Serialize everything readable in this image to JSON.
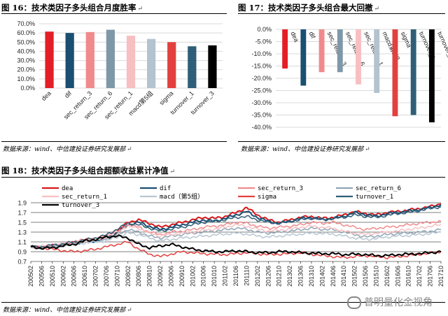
{
  "fig16": {
    "title": "图 16：技术类因子多头组合月度胜率",
    "mark": "↵",
    "source": "数据来源：wind、中信建投证券研究发展部",
    "source_mark": "↵",
    "chart_data": {
      "type": "bar",
      "categories": [
        "dea",
        "dif",
        "sec_return_3",
        "sec_return_6",
        "sec_return_1",
        "macd第5组",
        "sigma",
        "turnover_1",
        "turnover_3"
      ],
      "values": [
        61.5,
        60.0,
        61.0,
        63.5,
        57.0,
        53.5,
        50.0,
        45.5,
        46.5
      ],
      "colors": [
        "#E41E26",
        "#1B4F72",
        "#F08A8C",
        "#7E98A8",
        "#F7BFC1",
        "#B3C3CF",
        "#E2403F",
        "#2E5E78",
        "#000000"
      ],
      "ylim": [
        0,
        70
      ],
      "yticks": [
        "0.0%",
        "10.0%",
        "20.0%",
        "30.0%",
        "40.0%",
        "50.0%",
        "60.0%",
        "70.0%"
      ]
    }
  },
  "fig17": {
    "title": "图 17：技术类因子多头组合最大回撤",
    "mark": "↵",
    "source": "数据来源：wind、中信建投证券研究发展部",
    "source_mark": "↵",
    "chart_data": {
      "type": "bar",
      "categories": [
        "dea",
        "dif",
        "sec_return_3",
        "sec_return_6",
        "sec_return_1",
        "macd第5组",
        "sigma",
        "turnover_1",
        "turnover_3"
      ],
      "values": [
        -16.0,
        -23.0,
        -17.5,
        -17.5,
        -22.5,
        -26.0,
        -35.5,
        -35.0,
        -38.0
      ],
      "colors": [
        "#E41E26",
        "#1B4F72",
        "#F08A8C",
        "#7E98A8",
        "#F7BFC1",
        "#B3C3CF",
        "#E2403F",
        "#2E5E78",
        "#000000"
      ],
      "ylim": [
        -40,
        0
      ],
      "yticks": [
        "0.0%",
        "-5.0%",
        "-10.0%",
        "-15.0%",
        "-20.0%",
        "-25.0%",
        "-30.0%",
        "-35.0%",
        "-40.0%"
      ]
    }
  },
  "fig18": {
    "title": "图 18：技术类因子多头组合超额收益累计净值",
    "mark": "↵",
    "source": "数据来源：wind、中信建投证券研究发展部",
    "source_mark": "↵",
    "watermark": "普明量化金视角",
    "chart_data": {
      "type": "line",
      "ylim": [
        0.7,
        1.9
      ],
      "yticks": [
        "0.7",
        "0.9",
        "1.1",
        "1.3",
        "1.5",
        "1.7",
        "1.9"
      ],
      "xticks": [
        "200502",
        "200506",
        "200510",
        "200602",
        "200606",
        "200610",
        "200702",
        "200706",
        "200710",
        "200802",
        "200806",
        "200810",
        "200902",
        "200906",
        "200910",
        "201002",
        "201006",
        "201010",
        "201102",
        "201106",
        "201110",
        "201202",
        "201206",
        "201210",
        "201302",
        "201306",
        "201310",
        "201402",
        "201406",
        "201410",
        "201502",
        "201506",
        "201510",
        "201602",
        "201606",
        "201610",
        "201702",
        "201706",
        "201710"
      ],
      "series": [
        {
          "name": "dea",
          "color": "#D7191C",
          "width": 2,
          "values": [
            1.0,
            0.98,
            1.02,
            1.05,
            1.08,
            1.12,
            1.15,
            1.2,
            1.32,
            1.5,
            1.55,
            1.48,
            1.4,
            1.45,
            1.5,
            1.55,
            1.6,
            1.58,
            1.62,
            1.7,
            1.8,
            1.65,
            1.55,
            1.5,
            1.55,
            1.6,
            1.62,
            1.58,
            1.6,
            1.65,
            1.72,
            1.68,
            1.65,
            1.7,
            1.72,
            1.75,
            1.78,
            1.82,
            1.88
          ]
        },
        {
          "name": "dif",
          "color": "#1B4F72",
          "width": 2,
          "values": [
            1.0,
            0.99,
            1.01,
            1.04,
            1.07,
            1.1,
            1.12,
            1.18,
            1.28,
            1.45,
            1.5,
            1.42,
            1.35,
            1.4,
            1.45,
            1.5,
            1.55,
            1.52,
            1.58,
            1.65,
            1.72,
            1.6,
            1.52,
            1.48,
            1.52,
            1.58,
            1.6,
            1.55,
            1.58,
            1.62,
            1.7,
            1.66,
            1.62,
            1.68,
            1.7,
            1.73,
            1.76,
            1.8,
            1.86
          ]
        },
        {
          "name": "sec_return_3",
          "color": "#F08A8C",
          "width": 1.5,
          "values": [
            1.0,
            1.0,
            1.02,
            1.05,
            1.1,
            1.15,
            1.18,
            1.22,
            1.35,
            1.45,
            1.4,
            1.3,
            1.25,
            1.3,
            1.32,
            1.35,
            1.4,
            1.42,
            1.45,
            1.5,
            1.48,
            1.42,
            1.38,
            1.4,
            1.42,
            1.45,
            1.5,
            1.48,
            1.5,
            1.45,
            1.4,
            1.35,
            1.38,
            1.4,
            1.42,
            1.45,
            1.48,
            1.5,
            1.52
          ]
        },
        {
          "name": "sec_return_6",
          "color": "#8FA5B5",
          "width": 1.5,
          "values": [
            1.0,
            0.98,
            1.0,
            1.03,
            1.06,
            1.1,
            1.12,
            1.15,
            1.25,
            1.35,
            1.3,
            1.22,
            1.18,
            1.22,
            1.25,
            1.28,
            1.3,
            1.32,
            1.35,
            1.38,
            1.36,
            1.3,
            1.28,
            1.3,
            1.32,
            1.35,
            1.38,
            1.36,
            1.35,
            1.3,
            1.25,
            1.2,
            1.22,
            1.25,
            1.27,
            1.28,
            1.3,
            1.32,
            1.35
          ]
        },
        {
          "name": "sec_return_1",
          "color": "#F7BFC1",
          "width": 1.5,
          "values": [
            1.0,
            1.01,
            1.03,
            1.06,
            1.1,
            1.13,
            1.15,
            1.2,
            1.3,
            1.42,
            1.38,
            1.28,
            1.22,
            1.25,
            1.28,
            1.3,
            1.34,
            1.36,
            1.4,
            1.45,
            1.42,
            1.36,
            1.32,
            1.34,
            1.36,
            1.4,
            1.42,
            1.4,
            1.38,
            1.32,
            1.28,
            1.25,
            1.28,
            1.3,
            1.32,
            1.36,
            1.38,
            1.42,
            1.45
          ]
        },
        {
          "name": "macd（第5组）",
          "color": "#B8C7D2",
          "width": 1.5,
          "values": [
            1.0,
            0.99,
            1.0,
            1.02,
            1.05,
            1.08,
            1.1,
            1.12,
            1.2,
            1.28,
            1.25,
            1.18,
            1.12,
            1.15,
            1.18,
            1.2,
            1.22,
            1.24,
            1.26,
            1.28,
            1.26,
            1.22,
            1.2,
            1.22,
            1.24,
            1.26,
            1.28,
            1.27,
            1.26,
            1.22,
            1.18,
            1.15,
            1.17,
            1.2,
            1.22,
            1.23,
            1.25,
            1.27,
            1.3
          ]
        },
        {
          "name": "sigma",
          "color": "#E2403F",
          "width": 1.5,
          "values": [
            1.0,
            0.98,
            0.95,
            0.92,
            0.9,
            0.92,
            0.95,
            1.0,
            1.05,
            1.1,
            0.95,
            0.85,
            0.8,
            0.85,
            0.9,
            0.88,
            0.86,
            0.85,
            0.84,
            0.86,
            0.88,
            0.86,
            0.84,
            0.85,
            0.86,
            0.88,
            0.85,
            0.82,
            0.8,
            0.78,
            0.8,
            0.82,
            0.8,
            0.78,
            0.8,
            0.82,
            0.85,
            0.87,
            0.9
          ]
        },
        {
          "name": "turnover_1",
          "color": "#2E5E78",
          "width": 1.5,
          "values": [
            1.0,
            1.0,
            1.03,
            1.06,
            1.1,
            1.14,
            1.18,
            1.24,
            1.36,
            1.48,
            1.45,
            1.38,
            1.32,
            1.36,
            1.4,
            1.45,
            1.5,
            1.52,
            1.55,
            1.6,
            1.62,
            1.55,
            1.5,
            1.48,
            1.52,
            1.55,
            1.58,
            1.56,
            1.58,
            1.6,
            1.65,
            1.62,
            1.6,
            1.64,
            1.68,
            1.7,
            1.74,
            1.78,
            1.82
          ]
        },
        {
          "name": "turnover_3",
          "color": "#000000",
          "width": 2,
          "values": [
            1.0,
            0.97,
            0.98,
            1.02,
            1.05,
            1.12,
            1.15,
            1.2,
            1.22,
            1.18,
            1.05,
            0.98,
            1.02,
            1.05,
            1.0,
            0.95,
            0.92,
            0.9,
            0.9,
            0.92,
            0.9,
            0.88,
            0.88,
            0.9,
            0.9,
            0.88,
            0.87,
            0.86,
            0.86,
            0.84,
            0.85,
            0.84,
            0.82,
            0.82,
            0.84,
            0.85,
            0.86,
            0.88,
            0.9
          ]
        }
      ]
    }
  }
}
